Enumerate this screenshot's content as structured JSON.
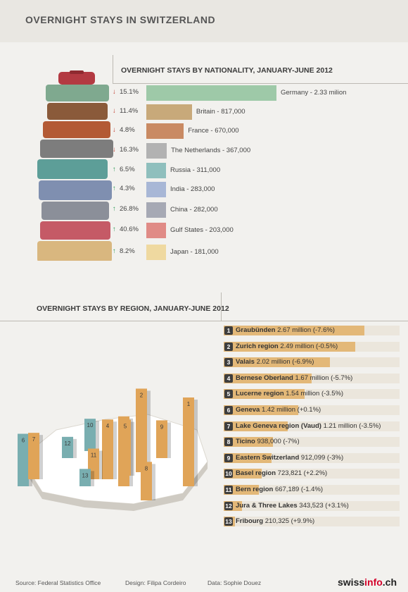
{
  "title": "OVERNIGHT STAYS IN SWITZERLAND",
  "nationality_header": "OVERNIGHT STAYS BY NATIONALITY, JANUARY-JUNE 2012",
  "region_header": "OVERNIGHT STAYS BY REGION, JANUARY-JUNE 2012",
  "footer": {
    "source": "Source: Federal Statistics Office",
    "design": "Design: Filipa Cordeiro",
    "data": "Data: Sophie Douez",
    "logo_a": "swiss",
    "logo_b": "info",
    "logo_c": ".ch"
  },
  "colors": {
    "up": "#2f9a58",
    "down": "#c0392b",
    "region_fill": "#e3b878",
    "region_track": "#ebe6dc",
    "map_orange": "#e0a458",
    "map_teal": "#79aeb0"
  },
  "chart_data": [
    {
      "type": "bar",
      "title": "OVERNIGHT STAYS BY NATIONALITY, JANUARY-JUNE 2012",
      "categories": [
        "Germany",
        "Britain",
        "France",
        "The Netherlands",
        "Russia",
        "India",
        "China",
        "Gulf States",
        "Japan"
      ],
      "values": [
        2330000,
        817000,
        670000,
        367000,
        311000,
        283000,
        282000,
        203000,
        181000
      ],
      "labels": [
        "Germany  - 2.33 milion",
        "Britain - 817,000",
        "France - 670,000",
        "The Netherlands - 367,000",
        "Russia - 311,000",
        "India - 283,000",
        "China - 282,000",
        "Gulf States - 203,000",
        "Japan - 181,000"
      ],
      "change_pct": [
        "15.1%",
        "11.4%",
        "4.8%",
        "16.3%",
        "6.5%",
        "4.3%",
        "26.8%",
        "40.6%",
        "8.2%"
      ],
      "direction": [
        "down",
        "down",
        "down",
        "down",
        "up",
        "up",
        "up",
        "up",
        "up"
      ],
      "bar_colors": [
        "#9ec9a8",
        "#c8a97a",
        "#c98a63",
        "#b2b2b2",
        "#8fbfbd",
        "#a8b7d6",
        "#a6a9b4",
        "#e08b86",
        "#efd9a0"
      ]
    },
    {
      "type": "bar",
      "title": "OVERNIGHT STAYS BY REGION, JANUARY-JUNE 2012",
      "categories": [
        "Graubünden",
        "Zurich region",
        "Valais",
        "Bernese Oberland",
        "Lucerne region",
        "Geneva",
        "Lake Geneva region (Vaud)",
        "Ticino",
        "Eastern Switzerland",
        "Basel region",
        "Bern region",
        "Jura & Three Lakes",
        "Fribourg"
      ],
      "values": [
        2670000,
        2490000,
        2020000,
        1670000,
        1540000,
        1420000,
        1210000,
        938000,
        912099,
        723821,
        667189,
        343523,
        210325
      ],
      "value_text": [
        "2.67 million (-7.6%)",
        "2.49 million (-0.5%)",
        "2.02 million (-6.9%)",
        "1.67 million (-5.7%)",
        "1.54 million (-3.5%)",
        "1.42 million (+0.1%)",
        "1.21 million (-3.5%)",
        "938,000 (-7%)",
        "912,099 (-3%)",
        "723,821 (+2.2%)",
        "667,189 (-1.4%)",
        "343,523 (+3.1%)",
        "210,325 (+9.9%)"
      ],
      "ranks": [
        "1",
        "2",
        "3",
        "4",
        "5",
        "6",
        "7",
        "8",
        "9",
        "10",
        "11",
        "12",
        "13"
      ],
      "change_direction": [
        "down",
        "down",
        "down",
        "down",
        "down",
        "up",
        "down",
        "down",
        "down",
        "up",
        "down",
        "up",
        "up"
      ]
    }
  ]
}
